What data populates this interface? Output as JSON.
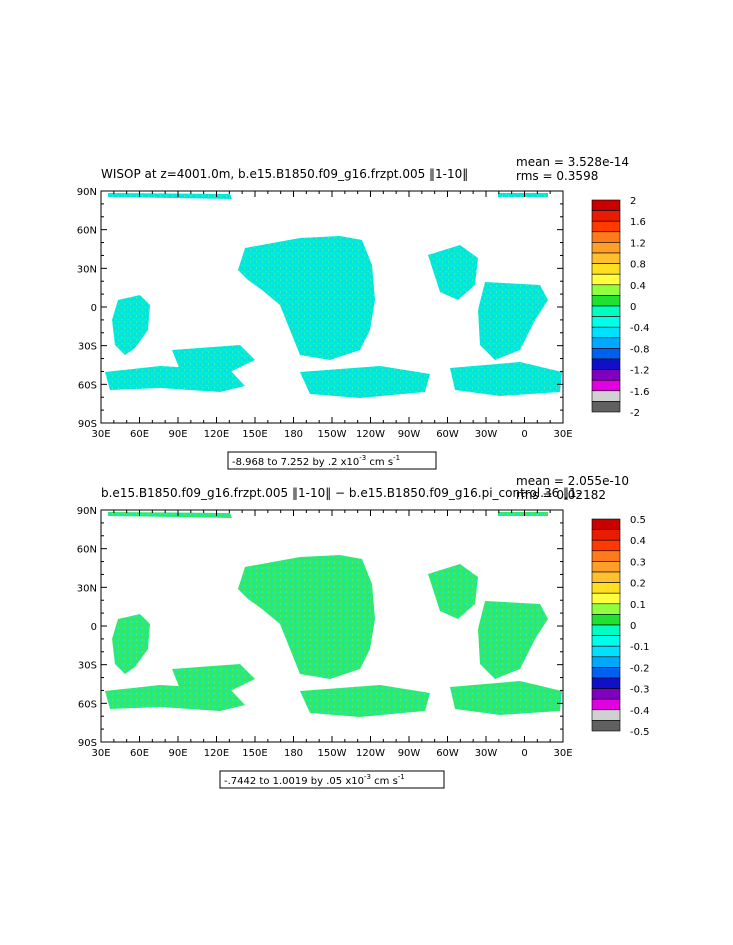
{
  "chart_data": [
    {
      "type": "heatmap",
      "title": "WISOP at z=4001.0m, b.e15.B1850.f09_g16.frzpt.005 ‖1-10‖",
      "mean_text": "mean = 3.528e-14",
      "rms_text": "rms = 0.3598",
      "range_text": "-8.968 to 7.252 by .2 x10",
      "range_exp": "-3",
      "range_units": " cm s",
      "range_units_exp": "-1",
      "x_ticks": [
        "30E",
        "60E",
        "90E",
        "120E",
        "150E",
        "180",
        "150W",
        "120W",
        "90W",
        "60W",
        "30W",
        "0",
        "30E"
      ],
      "y_ticks": [
        "90N",
        "60N",
        "30N",
        "0",
        "30S",
        "60S",
        "90S"
      ],
      "colorbar": {
        "labels": [
          "2",
          "1.6",
          "1.2",
          "0.8",
          "0.4",
          "0",
          "-0.4",
          "-0.8",
          "-1.2",
          "-1.6",
          "-2"
        ],
        "colors": [
          "#c80000",
          "#e81c00",
          "#ff3a00",
          "#ff7a1a",
          "#ff9f2a",
          "#ffc030",
          "#ffe020",
          "#ffff40",
          "#90ff40",
          "#20e030",
          "#00ffc0",
          "#00ffe8",
          "#00e0ff",
          "#00a8ff",
          "#0060f0",
          "#1010c8",
          "#8000c0",
          "#e000e0",
          "#d0d0d0",
          "#606060"
        ]
      },
      "field_color": "#00e8d8"
    },
    {
      "type": "heatmap",
      "title": "b.e15.B1850.f09_g16.frzpt.005 ‖1-10‖ − b.e15.B1850.f09_g16.pi_control.36 ‖1-",
      "mean_text": "mean = 2.055e-10",
      "rms_text": "rms = 0.02182",
      "range_text": "-.7442 to 1.0019 by .05 x10",
      "range_exp": "-3",
      "range_units": " cm s",
      "range_units_exp": "-1",
      "x_ticks": [
        "30E",
        "60E",
        "90E",
        "120E",
        "150E",
        "180",
        "150W",
        "120W",
        "90W",
        "60W",
        "30W",
        "0",
        "30E"
      ],
      "y_ticks": [
        "90N",
        "60N",
        "30N",
        "0",
        "30S",
        "60S",
        "90S"
      ],
      "colorbar": {
        "labels": [
          "0.5",
          "0.4",
          "0.3",
          "0.2",
          "0.1",
          "0",
          "-0.1",
          "-0.2",
          "-0.3",
          "-0.4",
          "-0.5"
        ],
        "colors": [
          "#c80000",
          "#e81c00",
          "#ff3a00",
          "#ff7a1a",
          "#ff9f2a",
          "#ffc030",
          "#ffe020",
          "#ffff40",
          "#90ff40",
          "#20e030",
          "#00ffc0",
          "#00ffe8",
          "#00e0ff",
          "#00a8ff",
          "#0060f0",
          "#1010c8",
          "#8000c0",
          "#e000e0",
          "#d0d0d0",
          "#606060"
        ]
      },
      "field_color": "#30e870"
    }
  ]
}
